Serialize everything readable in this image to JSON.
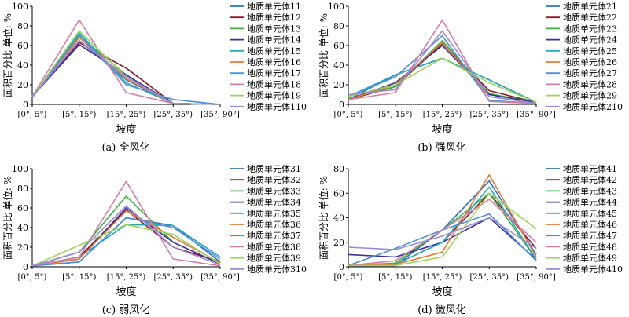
{
  "chart_data": [
    {
      "type": "line",
      "caption": "(a)  全风化",
      "ylabel": "面积百分比 单位: %",
      "xlabel": "坡度",
      "categories": [
        "[0°, 5°)",
        "[5°, 15°)",
        "[15°, 25°)",
        "[25°, 35°)",
        "[35°, 90°]"
      ],
      "ylim": [
        0,
        100
      ],
      "yticks": [
        "0",
        "20",
        "40",
        "60",
        "80",
        "100"
      ],
      "series": [
        {
          "name": "地质单元体11",
          "color": "#2e75b6",
          "values": [
            9,
            65,
            25,
            1,
            0
          ]
        },
        {
          "name": "地质单元体12",
          "color": "#8b1a2b",
          "values": [
            8,
            63,
            37,
            1,
            0
          ]
        },
        {
          "name": "地质单元体13",
          "color": "#3bb33b",
          "values": [
            8,
            70,
            30,
            1,
            0
          ]
        },
        {
          "name": "地质单元体14",
          "color": "#3b2fa0",
          "values": [
            8,
            61,
            30,
            1,
            0
          ]
        },
        {
          "name": "地质单元体15",
          "color": "#29a8b8",
          "values": [
            8,
            73,
            22,
            1,
            0
          ]
        },
        {
          "name": "地质单元体16",
          "color": "#e07b39",
          "values": [
            7,
            68,
            26,
            1,
            0
          ]
        },
        {
          "name": "地质单元体17",
          "color": "#4f8fd8",
          "values": [
            7,
            71,
            20,
            5,
            0
          ]
        },
        {
          "name": "地质单元体18",
          "color": "#d67ba8",
          "values": [
            8,
            86,
            12,
            1,
            0
          ]
        },
        {
          "name": "地质单元体19",
          "color": "#9bd45a",
          "values": [
            8,
            75,
            28,
            1,
            0
          ]
        },
        {
          "name": "地质单元体110",
          "color": "#9b8ad6",
          "values": [
            8,
            65,
            28,
            1,
            0
          ]
        }
      ]
    },
    {
      "type": "line",
      "caption": "(b)  强风化",
      "ylabel": "面积百分比 单位: %",
      "xlabel": "坡度",
      "categories": [
        "[0°, 5°)",
        "[5°, 15°)",
        "[15°, 25°)",
        "[25°, 35°)",
        "[35°, 90°]"
      ],
      "ylim": [
        0,
        100
      ],
      "yticks": [
        "0",
        "20",
        "40",
        "60",
        "80",
        "100"
      ],
      "series": [
        {
          "name": "地质单元体21",
          "color": "#2e75b6",
          "values": [
            5,
            30,
            47,
            25,
            2
          ]
        },
        {
          "name": "地质单元体22",
          "color": "#8b1a2b",
          "values": [
            5,
            18,
            62,
            14,
            2
          ]
        },
        {
          "name": "地质单元体23",
          "color": "#3bb33b",
          "values": [
            6,
            18,
            65,
            11,
            2
          ]
        },
        {
          "name": "地质单元体24",
          "color": "#3b2fa0",
          "values": [
            5,
            22,
            60,
            10,
            2
          ]
        },
        {
          "name": "地质单元体25",
          "color": "#29a8b8",
          "values": [
            8,
            30,
            47,
            25,
            2
          ]
        },
        {
          "name": "地质单元体26",
          "color": "#e07b39",
          "values": [
            5,
            20,
            63,
            8,
            1
          ]
        },
        {
          "name": "地质单元体27",
          "color": "#4f8fd8",
          "values": [
            8,
            28,
            70,
            4,
            1
          ]
        },
        {
          "name": "地质单元体28",
          "color": "#d67ba8",
          "values": [
            5,
            12,
            86,
            3,
            1
          ]
        },
        {
          "name": "地质单元体29",
          "color": "#9bd45a",
          "values": [
            8,
            20,
            47,
            22,
            2
          ]
        },
        {
          "name": "地质单元体210",
          "color": "#9b8ad6",
          "values": [
            10,
            15,
            75,
            8,
            1
          ]
        }
      ]
    },
    {
      "type": "line",
      "caption": "(c)  弱风化",
      "ylabel": "面积百分比 单位: %",
      "xlabel": "坡度",
      "categories": [
        "[0°, 5°)",
        "[5°, 15°)",
        "[15°, 25°)",
        "[25°, 35°)",
        "[35°, 90°]"
      ],
      "ylim": [
        0,
        100
      ],
      "yticks": [
        "0",
        "20",
        "40",
        "60",
        "80",
        "100"
      ],
      "series": [
        {
          "name": "地质单元体31",
          "color": "#2e75b6",
          "values": [
            1,
            5,
            50,
            42,
            5
          ]
        },
        {
          "name": "地质单元体32",
          "color": "#8b1a2b",
          "values": [
            1,
            10,
            58,
            20,
            5
          ]
        },
        {
          "name": "地质单元体33",
          "color": "#3bb33b",
          "values": [
            1,
            15,
            72,
            25,
            3
          ]
        },
        {
          "name": "地质单元体34",
          "color": "#3b2fa0",
          "values": [
            1,
            8,
            60,
            25,
            3
          ]
        },
        {
          "name": "地质单元体35",
          "color": "#29a8b8",
          "values": [
            1,
            10,
            43,
            42,
            10
          ]
        },
        {
          "name": "地质单元体36",
          "color": "#e07b39",
          "values": [
            1,
            8,
            57,
            30,
            4
          ]
        },
        {
          "name": "地质单元体37",
          "color": "#4f8fd8",
          "values": [
            1,
            5,
            50,
            40,
            8
          ]
        },
        {
          "name": "地质单元体38",
          "color": "#d67ba8",
          "values": [
            1,
            10,
            87,
            8,
            1
          ]
        },
        {
          "name": "地质单元体39",
          "color": "#9bd45a",
          "values": [
            1,
            22,
            43,
            33,
            3
          ]
        },
        {
          "name": "地质单元体310",
          "color": "#9b8ad6",
          "values": [
            1,
            15,
            62,
            20,
            2
          ]
        }
      ]
    },
    {
      "type": "line",
      "caption": "(d)  微风化",
      "ylabel": "面积百分比 单位: %",
      "xlabel": "坡度",
      "categories": [
        "[0°, 5°)",
        "[5°, 15°)",
        "[15°, 25°)",
        "[25°, 35°)",
        "[35°, 90°]"
      ],
      "ylim": [
        0,
        80
      ],
      "yticks": [
        "0",
        "20",
        "40",
        "60",
        "80"
      ],
      "series": [
        {
          "name": "地质单元体41",
          "color": "#2e75b6",
          "values": [
            1,
            1,
            30,
            70,
            10
          ]
        },
        {
          "name": "地质单元体42",
          "color": "#8b1a2b",
          "values": [
            1,
            2,
            20,
            60,
            15
          ]
        },
        {
          "name": "地质单元体43",
          "color": "#3bb33b",
          "values": [
            1,
            3,
            30,
            60,
            6
          ]
        },
        {
          "name": "地质单元体44",
          "color": "#3b2fa0",
          "values": [
            10,
            8,
            20,
            40,
            6
          ]
        },
        {
          "name": "地质单元体45",
          "color": "#29a8b8",
          "values": [
            1,
            2,
            20,
            65,
            6
          ]
        },
        {
          "name": "地质单元体46",
          "color": "#e07b39",
          "values": [
            1,
            2,
            12,
            75,
            8
          ]
        },
        {
          "name": "地质单元体47",
          "color": "#4f8fd8",
          "values": [
            1,
            15,
            30,
            43,
            5
          ]
        },
        {
          "name": "地质单元体48",
          "color": "#d67ba8",
          "values": [
            1,
            5,
            30,
            55,
            20
          ]
        },
        {
          "name": "地质单元体49",
          "color": "#9bd45a",
          "values": [
            1,
            1,
            8,
            60,
            31
          ]
        },
        {
          "name": "地质单元体410",
          "color": "#9b8ad6",
          "values": [
            16,
            14,
            25,
            40,
            15
          ]
        }
      ]
    }
  ]
}
